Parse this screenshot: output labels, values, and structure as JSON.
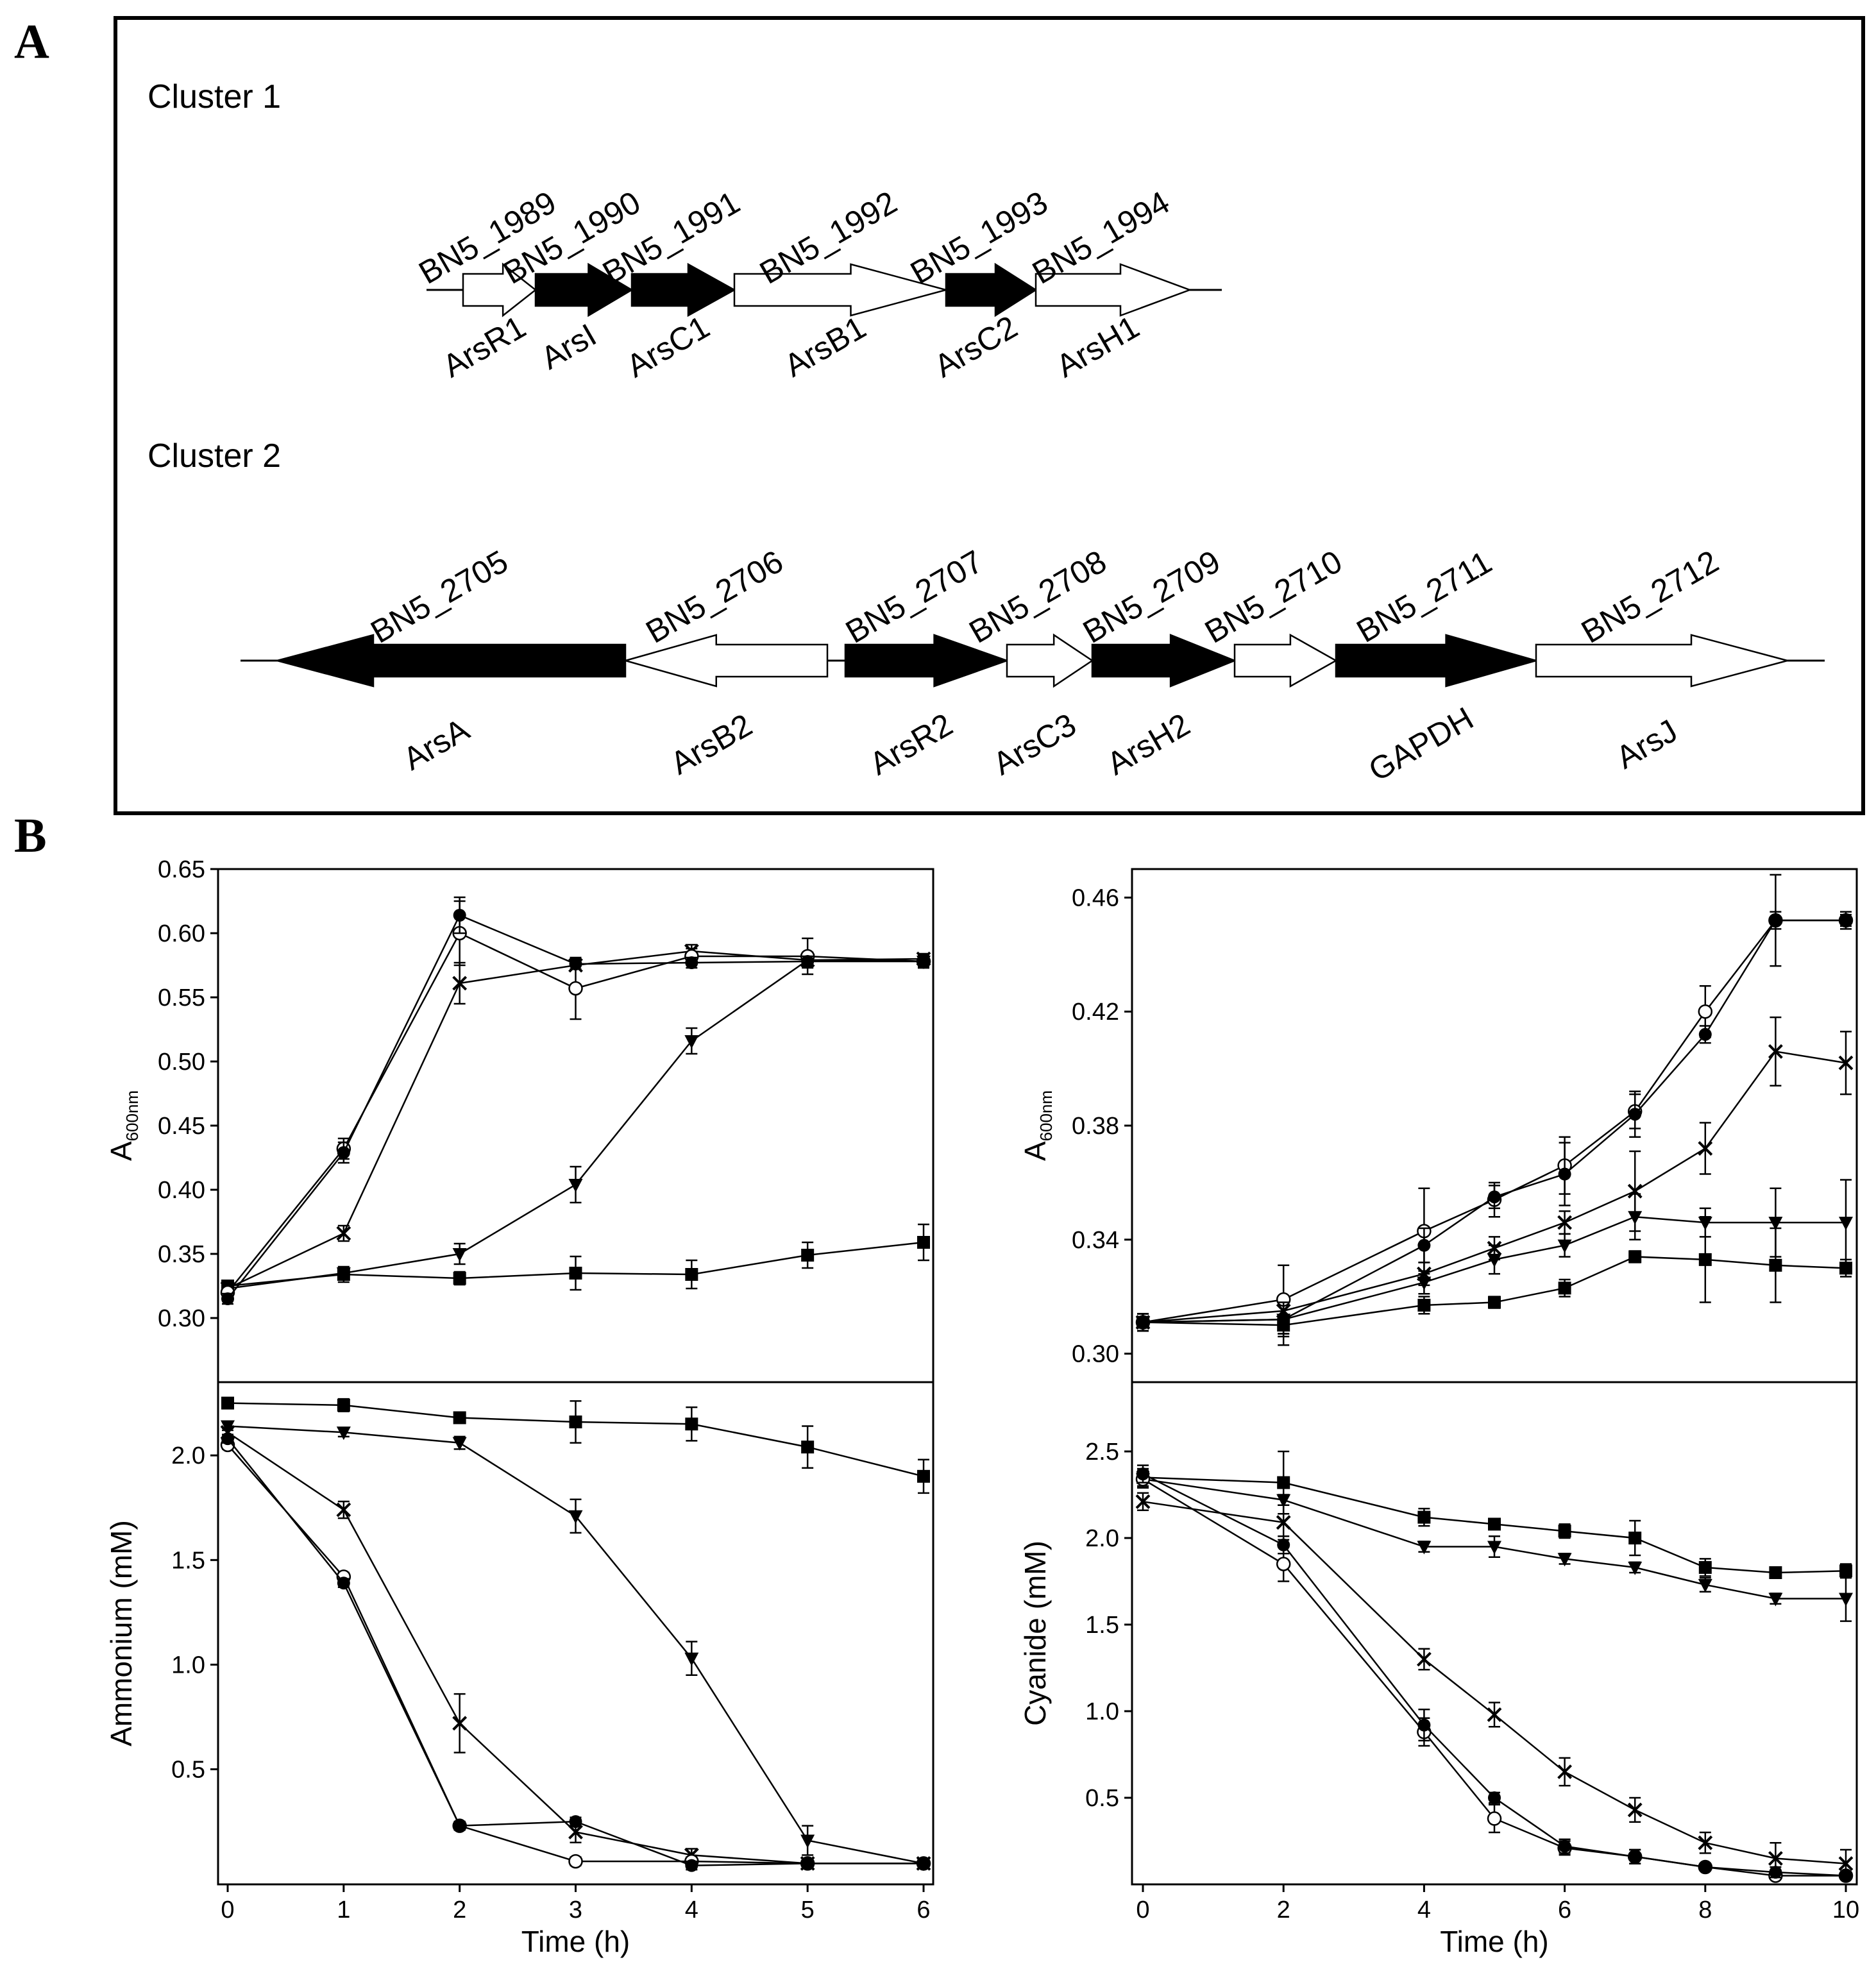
{
  "panel_a": {
    "letter": "A",
    "clusters": [
      {
        "label": "Cluster 1",
        "genes": [
          {
            "locus": "BN5_1989",
            "name": "ArsR1",
            "filled": false,
            "dir": "right"
          },
          {
            "locus": "BN5_1990",
            "name": "ArsI",
            "filled": true,
            "dir": "right"
          },
          {
            "locus": "BN5_1991",
            "name": "ArsC1",
            "filled": true,
            "dir": "right"
          },
          {
            "locus": "BN5_1992",
            "name": "ArsB1",
            "filled": false,
            "dir": "right"
          },
          {
            "locus": "BN5_1993",
            "name": "ArsC2",
            "filled": true,
            "dir": "right"
          },
          {
            "locus": "BN5_1994",
            "name": "ArsH1",
            "filled": false,
            "dir": "right"
          }
        ]
      },
      {
        "label": "Cluster 2",
        "genes": [
          {
            "locus": "BN5_2705",
            "name": "ArsA",
            "filled": true,
            "dir": "left"
          },
          {
            "locus": "BN5_2706",
            "name": "ArsB2",
            "filled": false,
            "dir": "left"
          },
          {
            "locus": "BN5_2707",
            "name": "ArsR2",
            "filled": true,
            "dir": "right"
          },
          {
            "locus": "BN5_2708",
            "name": "ArsC3",
            "filled": false,
            "dir": "right"
          },
          {
            "locus": "BN5_2709",
            "name": "ArsH2",
            "filled": true,
            "dir": "right"
          },
          {
            "locus": "BN5_2710",
            "name": "",
            "filled": false,
            "dir": "right"
          },
          {
            "locus": "BN5_2711",
            "name": "GAPDH",
            "filled": true,
            "dir": "right"
          },
          {
            "locus": "BN5_2712",
            "name": "ArsJ",
            "filled": false,
            "dir": "right"
          }
        ]
      }
    ]
  },
  "panel_b": {
    "letter": "B"
  },
  "chart_data": [
    {
      "id": "left",
      "type": "line",
      "xlabel": "Time (h)",
      "xlim": [
        0,
        6
      ],
      "xticks": [
        0,
        1,
        2,
        3,
        4,
        5,
        6
      ],
      "top": {
        "ylabel": "A",
        "ylabel_sub": "600nm",
        "ylim": [
          0.25,
          0.65
        ],
        "yticks": [
          0.3,
          0.35,
          0.4,
          0.45,
          0.5,
          0.55,
          0.6,
          0.65
        ],
        "series": [
          {
            "marker": "square",
            "x": [
              0,
              1,
              2,
              3,
              4,
              5,
              6
            ],
            "y": [
              0.325,
              0.334,
              0.331,
              0.335,
              0.334,
              0.349,
              0.359
            ],
            "err": [
              0.004,
              0.006,
              0.005,
              0.013,
              0.011,
              0.01,
              0.014
            ]
          },
          {
            "marker": "triangle-down",
            "x": [
              0,
              1,
              2,
              3,
              4,
              5,
              6
            ],
            "y": [
              0.323,
              0.335,
              0.35,
              0.404,
              0.516,
              0.579,
              0.578
            ],
            "err": [
              0.004,
              0.004,
              0.008,
              0.014,
              0.01,
              0.006,
              0.005
            ]
          },
          {
            "marker": "x",
            "x": [
              0,
              1,
              2,
              3,
              4,
              5,
              6
            ],
            "y": [
              0.323,
              0.366,
              0.561,
              0.575,
              0.586,
              0.579,
              0.58
            ],
            "err": [
              0.004,
              0.006,
              0.016,
              0.003,
              0.005,
              0.004,
              0.004
            ]
          },
          {
            "marker": "circle-open",
            "x": [
              0,
              1,
              2,
              3,
              4,
              5,
              6
            ],
            "y": [
              0.32,
              0.432,
              0.6,
              0.557,
              0.582,
              0.582,
              0.578
            ],
            "err": [
              0.004,
              0.008,
              0.025,
              0.024,
              0.006,
              0.014,
              0.005
            ]
          },
          {
            "marker": "circle-filled",
            "x": [
              0,
              1,
              2,
              3,
              4,
              5,
              6
            ],
            "y": [
              0.315,
              0.429,
              0.614,
              0.576,
              0.577,
              0.578,
              0.578
            ],
            "err": [
              0.004,
              0.008,
              0.014,
              0.004,
              0.004,
              0.004,
              0.004
            ]
          }
        ]
      },
      "bottom": {
        "ylabel": "Ammonium (mM)",
        "ylim": [
          -0.05,
          2.35
        ],
        "yticks": [
          0.5,
          1.0,
          1.5,
          2.0
        ],
        "series": [
          {
            "marker": "square",
            "x": [
              0,
              1,
              2,
              3,
              4,
              5,
              6
            ],
            "y": [
              2.25,
              2.24,
              2.18,
              2.16,
              2.15,
              2.04,
              1.9
            ],
            "err": [
              0.02,
              0.03,
              0.02,
              0.1,
              0.08,
              0.1,
              0.08
            ]
          },
          {
            "marker": "triangle-down",
            "x": [
              0,
              1,
              2,
              3,
              4,
              5,
              6
            ],
            "y": [
              2.14,
              2.11,
              2.06,
              1.71,
              1.03,
              0.16,
              0.05
            ],
            "err": [
              0.02,
              0.02,
              0.03,
              0.08,
              0.08,
              0.07,
              0.02
            ]
          },
          {
            "marker": "x",
            "x": [
              0,
              1,
              2,
              3,
              4,
              5,
              6
            ],
            "y": [
              2.11,
              1.74,
              0.72,
              0.2,
              0.09,
              0.05,
              0.05
            ],
            "err": [
              0.02,
              0.04,
              0.14,
              0.05,
              0.03,
              0.02,
              0.02
            ]
          },
          {
            "marker": "circle-open",
            "x": [
              0,
              1,
              2,
              3,
              4,
              5,
              6
            ],
            "y": [
              2.05,
              1.42,
              0.23,
              0.06,
              0.06,
              0.05,
              0.05
            ],
            "err": [
              0.02,
              0.02,
              0.02,
              0.02,
              0.02,
              0.02,
              0.02
            ]
          },
          {
            "marker": "circle-filled",
            "x": [
              0,
              1,
              2,
              3,
              4,
              5,
              6
            ],
            "y": [
              2.08,
              1.39,
              0.23,
              0.25,
              0.04,
              0.05,
              0.05
            ],
            "err": [
              0.02,
              0.02,
              0.02,
              0.02,
              0.02,
              0.02,
              0.02
            ]
          }
        ]
      }
    },
    {
      "id": "right",
      "type": "line",
      "xlabel": "Time (h)",
      "xlim": [
        0,
        10
      ],
      "xticks": [
        0,
        2,
        4,
        6,
        8,
        10
      ],
      "top": {
        "ylabel": "A",
        "ylabel_sub": "600nm",
        "ylim": [
          0.29,
          0.47
        ],
        "yticks": [
          0.3,
          0.34,
          0.38,
          0.42,
          0.46
        ],
        "series": [
          {
            "marker": "square",
            "x": [
              0,
              2,
              4,
              5,
              6,
              7,
              8,
              9,
              10
            ],
            "y": [
              0.311,
              0.31,
              0.317,
              0.318,
              0.323,
              0.334,
              0.333,
              0.331,
              0.33
            ],
            "err": [
              0.003,
              0.007,
              0.003,
              0.002,
              0.003,
              0.002,
              0.015,
              0.013,
              0.003
            ]
          },
          {
            "marker": "triangle-down",
            "x": [
              0,
              2,
              4,
              5,
              6,
              7,
              8,
              9,
              10
            ],
            "y": [
              0.311,
              0.312,
              0.325,
              0.333,
              0.338,
              0.348,
              0.346,
              0.346,
              0.346
            ],
            "err": [
              0.003,
              0.005,
              0.004,
              0.005,
              0.004,
              0.008,
              0.005,
              0.012,
              0.015
            ]
          },
          {
            "marker": "x",
            "x": [
              0,
              2,
              4,
              5,
              6,
              7,
              8,
              9,
              10
            ],
            "y": [
              0.311,
              0.315,
              0.328,
              0.337,
              0.346,
              0.357,
              0.372,
              0.406,
              0.402
            ],
            "err": [
              0.003,
              0.005,
              0.004,
              0.004,
              0.004,
              0.014,
              0.009,
              0.012,
              0.011
            ]
          },
          {
            "marker": "circle-open",
            "x": [
              0,
              2,
              4,
              5,
              6,
              7,
              8,
              9,
              10
            ],
            "y": [
              0.311,
              0.319,
              0.343,
              0.354,
              0.366,
              0.385,
              0.42,
              0.452,
              0.452
            ],
            "err": [
              0.003,
              0.012,
              0.015,
              0.006,
              0.01,
              0.006,
              0.009,
              0.016,
              0.003
            ]
          },
          {
            "marker": "circle-filled",
            "x": [
              0,
              2,
              4,
              5,
              6,
              7,
              8,
              9,
              10
            ],
            "y": [
              0.311,
              0.312,
              0.338,
              0.355,
              0.363,
              0.384,
              0.412,
              0.452,
              0.452
            ],
            "err": [
              0.003,
              0.006,
              0.006,
              0.004,
              0.011,
              0.008,
              0.003,
              0.003,
              0.002
            ]
          }
        ]
      },
      "bottom": {
        "ylabel": "Cyanide (mM)",
        "ylim": [
          0.0,
          2.9
        ],
        "yticks": [
          0.5,
          1.0,
          1.5,
          2.0,
          2.5
        ],
        "series": [
          {
            "marker": "square",
            "x": [
              0,
              2,
              4,
              5,
              6,
              7,
              8,
              9,
              10
            ],
            "y": [
              2.35,
              2.32,
              2.12,
              2.08,
              2.04,
              2.0,
              1.83,
              1.8,
              1.81
            ],
            "err": [
              0.05,
              0.18,
              0.05,
              0.03,
              0.04,
              0.1,
              0.05,
              0.03,
              0.04
            ]
          },
          {
            "marker": "triangle-down",
            "x": [
              0,
              2,
              4,
              5,
              6,
              7,
              8,
              9,
              10
            ],
            "y": [
              2.34,
              2.22,
              1.95,
              1.95,
              1.88,
              1.83,
              1.73,
              1.65,
              1.65
            ],
            "err": [
              0.04,
              0.03,
              0.03,
              0.06,
              0.03,
              0.03,
              0.04,
              0.03,
              0.13
            ]
          },
          {
            "marker": "x",
            "x": [
              0,
              2,
              4,
              5,
              6,
              7,
              8,
              9,
              10
            ],
            "y": [
              2.21,
              2.09,
              1.3,
              0.98,
              0.65,
              0.43,
              0.24,
              0.15,
              0.12
            ],
            "err": [
              0.05,
              0.1,
              0.06,
              0.07,
              0.08,
              0.07,
              0.06,
              0.09,
              0.08
            ]
          },
          {
            "marker": "circle-open",
            "x": [
              0,
              2,
              4,
              5,
              6,
              7,
              8,
              9,
              10
            ],
            "y": [
              2.34,
              1.85,
              0.88,
              0.38,
              0.21,
              0.16,
              0.1,
              0.05,
              0.05
            ],
            "err": [
              0.05,
              0.1,
              0.08,
              0.08,
              0.04,
              0.04,
              0.02,
              0.02,
              0.02
            ]
          },
          {
            "marker": "circle-filled",
            "x": [
              0,
              2,
              4,
              5,
              6,
              7,
              8,
              9,
              10
            ],
            "y": [
              2.37,
              1.96,
              0.92,
              0.5,
              0.22,
              0.16,
              0.1,
              0.07,
              0.05
            ],
            "err": [
              0.05,
              0.05,
              0.09,
              0.03,
              0.04,
              0.04,
              0.02,
              0.03,
              0.02
            ]
          }
        ]
      }
    }
  ]
}
